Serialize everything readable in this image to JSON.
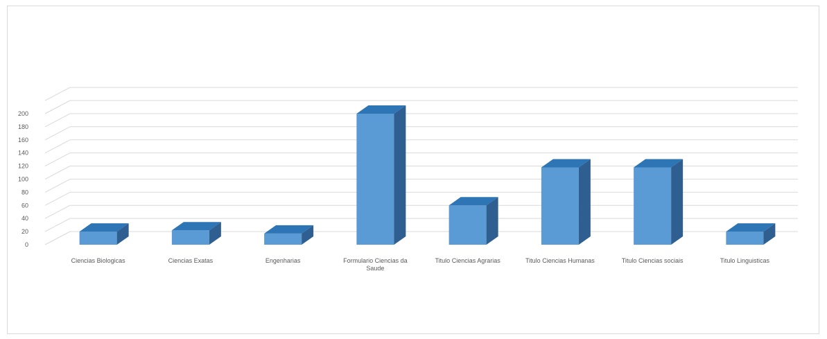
{
  "chart_data": {
    "type": "bar",
    "categories": [
      "Ciencias Biologicas",
      "Ciencias Exatas",
      "Engenharias",
      "Formulario Ciencias da Saude",
      "Titulo Ciencias Agrarias",
      "Titulo Ciencias Humanas",
      "Titulo Ciencias sociais",
      "Titulo Linguisticas"
    ],
    "values": [
      20,
      22,
      17,
      200,
      60,
      118,
      118,
      20
    ],
    "yticks": [
      "0",
      "20",
      "40",
      "60",
      "80",
      "100",
      "120",
      "140",
      "160",
      "180",
      "200"
    ],
    "ylim": [
      0,
      220
    ],
    "title": "",
    "xlabel": "",
    "ylabel": "",
    "grid": true,
    "style": "3d-column",
    "colors": {
      "front": "#5b9bd5",
      "top": "#2e75b6",
      "side": "#2f5f90"
    }
  }
}
